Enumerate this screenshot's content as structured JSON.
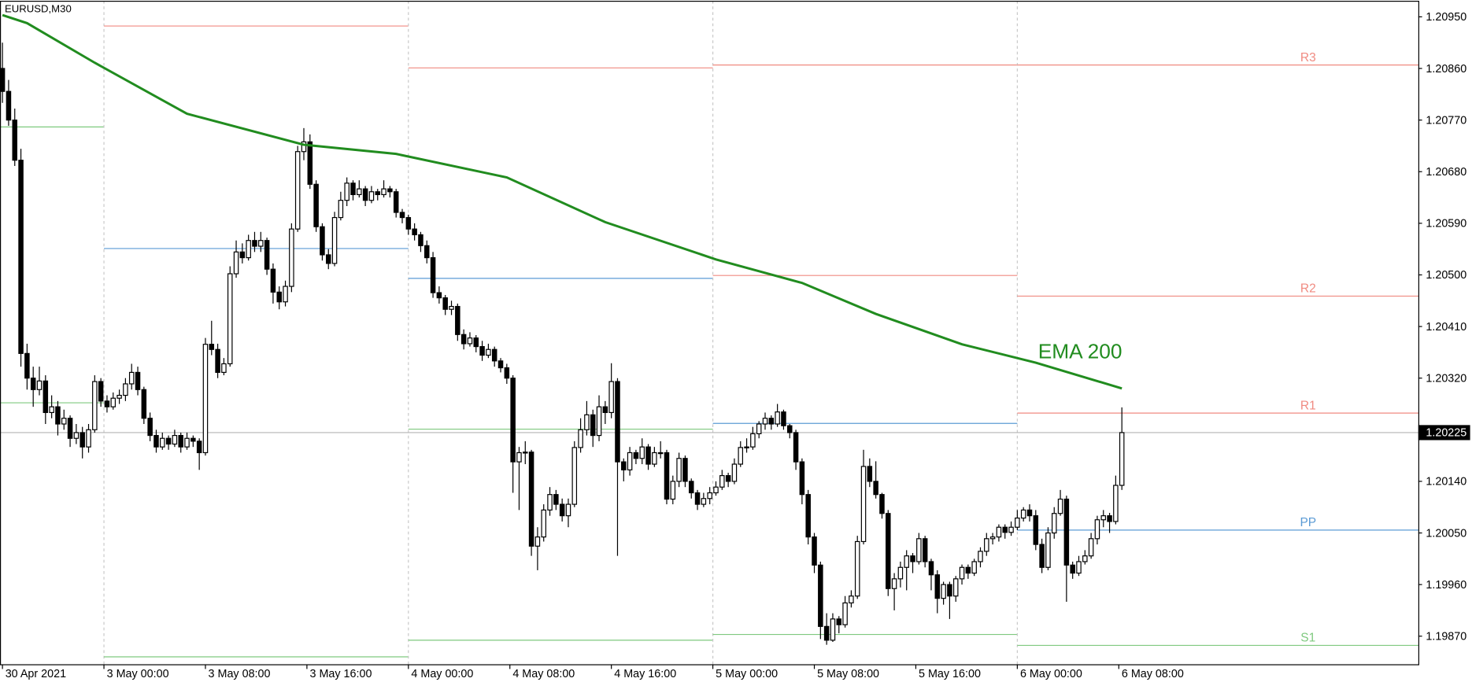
{
  "chart_data": {
    "type": "candlestick",
    "title": "EURUSD,M30",
    "up_color": "#ffffff",
    "down_color": "#000000",
    "ohlc": [
      [
        1.2086,
        1.20905,
        1.208,
        1.2082
      ],
      [
        1.2082,
        1.2084,
        1.2076,
        1.2077
      ],
      [
        1.2077,
        1.2079,
        1.2069,
        1.207
      ],
      [
        1.207,
        1.2072,
        1.2034,
        1.20363
      ],
      [
        1.20363,
        1.2038,
        1.203,
        1.2032
      ],
      [
        1.2032,
        1.2034,
        1.2027,
        1.203
      ],
      [
        1.203,
        1.2034,
        1.2029,
        1.20315
      ],
      [
        1.20315,
        1.20325,
        1.2024,
        1.2026
      ],
      [
        1.2026,
        1.2029,
        1.2025,
        1.2027
      ],
      [
        1.2027,
        1.2028,
        1.2022,
        1.2024
      ],
      [
        1.2024,
        1.20265,
        1.2023,
        1.2025
      ],
      [
        1.2025,
        1.20255,
        1.202,
        1.20215
      ],
      [
        1.20215,
        1.2024,
        1.20205,
        1.20225
      ],
      [
        1.20225,
        1.20235,
        1.2018,
        1.202
      ],
      [
        1.202,
        1.2024,
        1.2019,
        1.2023
      ],
      [
        1.2023,
        1.20325,
        1.20225,
        1.20314
      ],
      [
        1.20314,
        1.2032,
        1.2027,
        1.2028
      ],
      [
        1.2028,
        1.2029,
        1.2026,
        1.2027
      ],
      [
        1.2027,
        1.20295,
        1.20265,
        1.20285
      ],
      [
        1.20285,
        1.203,
        1.20275,
        1.2029
      ],
      [
        1.2029,
        1.2032,
        1.2028,
        1.2031
      ],
      [
        1.2031,
        1.20345,
        1.203,
        1.2033
      ],
      [
        1.2033,
        1.2034,
        1.2029,
        1.203
      ],
      [
        1.203,
        1.20305,
        1.2024,
        1.2025
      ],
      [
        1.2025,
        1.2026,
        1.2021,
        1.2022
      ],
      [
        1.2022,
        1.2023,
        1.2019,
        1.202
      ],
      [
        1.202,
        1.20225,
        1.20195,
        1.20215
      ],
      [
        1.20215,
        1.2022,
        1.20195,
        1.20205
      ],
      [
        1.20205,
        1.2023,
        1.202,
        1.2022
      ],
      [
        1.2022,
        1.20225,
        1.2019,
        1.202
      ],
      [
        1.202,
        1.20225,
        1.20195,
        1.20215
      ],
      [
        1.20215,
        1.2022,
        1.202,
        1.2021
      ],
      [
        1.2021,
        1.20215,
        1.2016,
        1.2019
      ],
      [
        1.2019,
        1.2039,
        1.20185,
        1.20379
      ],
      [
        1.20379,
        1.2042,
        1.2036,
        1.2037
      ],
      [
        1.2037,
        1.2038,
        1.2032,
        1.2033
      ],
      [
        1.2033,
        1.20355,
        1.20325,
        1.20345
      ],
      [
        1.20345,
        1.20515,
        1.2034,
        1.20502
      ],
      [
        1.20502,
        1.2056,
        1.20495,
        1.2054
      ],
      [
        1.2054,
        1.20555,
        1.2052,
        1.2053
      ],
      [
        1.2053,
        1.2057,
        1.20525,
        1.2056
      ],
      [
        1.2056,
        1.20575,
        1.2054,
        1.2055
      ],
      [
        1.2055,
        1.20575,
        1.2054,
        1.2056
      ],
      [
        1.2056,
        1.20565,
        1.205,
        1.2051
      ],
      [
        1.2051,
        1.2052,
        1.2045,
        1.2047
      ],
      [
        1.2047,
        1.2048,
        1.2044,
        1.20453
      ],
      [
        1.20453,
        1.2049,
        1.20445,
        1.2048
      ],
      [
        1.2048,
        1.2059,
        1.2047,
        1.2058
      ],
      [
        1.2058,
        1.20725,
        1.20575,
        1.20715
      ],
      [
        1.20715,
        1.20756,
        1.207,
        1.20732
      ],
      [
        1.20732,
        1.20745,
        1.2065,
        1.20658
      ],
      [
        1.20658,
        1.20665,
        1.20575,
        1.20584
      ],
      [
        1.20584,
        1.2059,
        1.20525,
        1.20535
      ],
      [
        1.20535,
        1.20545,
        1.2051,
        1.2052
      ],
      [
        1.2052,
        1.2061,
        1.20515,
        1.206
      ],
      [
        1.206,
        1.20645,
        1.20595,
        1.2063
      ],
      [
        1.2063,
        1.2067,
        1.2062,
        1.2066
      ],
      [
        1.2066,
        1.20665,
        1.2063,
        1.2064
      ],
      [
        1.2064,
        1.20665,
        1.20635,
        1.2065
      ],
      [
        1.2065,
        1.20655,
        1.2062,
        1.2063
      ],
      [
        1.2063,
        1.20655,
        1.20625,
        1.20645
      ],
      [
        1.20645,
        1.2065,
        1.2063,
        1.2064
      ],
      [
        1.2064,
        1.20665,
        1.20635,
        1.2065
      ],
      [
        1.2065,
        1.20655,
        1.20635,
        1.20645
      ],
      [
        1.20645,
        1.2065,
        1.206,
        1.20609
      ],
      [
        1.20609,
        1.20615,
        1.2059,
        1.206
      ],
      [
        1.206,
        1.20605,
        1.2057,
        1.2058
      ],
      [
        1.2058,
        1.2059,
        1.2056,
        1.2057
      ],
      [
        1.2057,
        1.20575,
        1.2054,
        1.20551
      ],
      [
        1.20551,
        1.2056,
        1.2052,
        1.2053
      ],
      [
        1.2053,
        1.2054,
        1.2046,
        1.20469
      ],
      [
        1.20469,
        1.2048,
        1.2045,
        1.2046
      ],
      [
        1.2046,
        1.20465,
        1.2043,
        1.2044
      ],
      [
        1.2044,
        1.20455,
        1.2043,
        1.20445
      ],
      [
        1.20445,
        1.2045,
        1.20385,
        1.20396
      ],
      [
        1.20396,
        1.20405,
        1.2037,
        1.2038
      ],
      [
        1.2038,
        1.204,
        1.20375,
        1.2039
      ],
      [
        1.2039,
        1.20395,
        1.20365,
        1.20375
      ],
      [
        1.20375,
        1.20385,
        1.2035,
        1.2036
      ],
      [
        1.2036,
        1.2038,
        1.20355,
        1.2037
      ],
      [
        1.2037,
        1.20375,
        1.2034,
        1.2035
      ],
      [
        1.2035,
        1.20355,
        1.2033,
        1.20338
      ],
      [
        1.20338,
        1.20345,
        1.2031,
        1.2032
      ],
      [
        1.2032,
        1.20325,
        1.2012,
        1.20174
      ],
      [
        1.20174,
        1.202,
        1.2009,
        1.2019
      ],
      [
        1.2019,
        1.2021,
        1.2017,
        1.20191
      ],
      [
        1.20191,
        1.20195,
        1.2001,
        1.20027
      ],
      [
        1.20027,
        1.2006,
        1.19985,
        1.20043
      ],
      [
        1.20043,
        1.201,
        1.20035,
        1.2009
      ],
      [
        1.2009,
        1.2013,
        1.2008,
        1.20117
      ],
      [
        1.20117,
        1.20125,
        1.2009,
        1.201
      ],
      [
        1.201,
        1.2011,
        1.2007,
        1.2008
      ],
      [
        1.2008,
        1.2011,
        1.2006,
        1.201
      ],
      [
        1.201,
        1.2021,
        1.20095,
        1.20199
      ],
      [
        1.20199,
        1.2025,
        1.2019,
        1.2023
      ],
      [
        1.2023,
        1.2028,
        1.2022,
        1.20256
      ],
      [
        1.20256,
        1.20265,
        1.202,
        1.2022
      ],
      [
        1.2022,
        1.2029,
        1.2021,
        1.2027
      ],
      [
        1.2027,
        1.2028,
        1.2024,
        1.2026
      ],
      [
        1.2026,
        1.20346,
        1.2025,
        1.20314
      ],
      [
        1.20314,
        1.2032,
        1.2001,
        1.20174
      ],
      [
        1.20174,
        1.2018,
        1.2014,
        1.2016
      ],
      [
        1.2016,
        1.202,
        1.2015,
        1.2019
      ],
      [
        1.2019,
        1.20195,
        1.2017,
        1.2018
      ],
      [
        1.2018,
        1.20215,
        1.2017,
        1.202
      ],
      [
        1.202,
        1.20205,
        1.2016,
        1.2017
      ],
      [
        1.2017,
        1.202,
        1.20165,
        1.2019
      ],
      [
        1.2019,
        1.2021,
        1.2018,
        1.2019
      ],
      [
        1.2019,
        1.20195,
        1.201,
        1.20109
      ],
      [
        1.20109,
        1.2015,
        1.201,
        1.2014
      ],
      [
        1.2014,
        1.2019,
        1.2013,
        1.2018
      ],
      [
        1.2018,
        1.20185,
        1.2013,
        1.2014
      ],
      [
        1.2014,
        1.20145,
        1.2011,
        1.2012
      ],
      [
        1.2012,
        1.20125,
        1.2009,
        1.201
      ],
      [
        1.201,
        1.2012,
        1.20095,
        1.2011
      ],
      [
        1.2011,
        1.2013,
        1.201,
        1.2012
      ],
      [
        1.2012,
        1.2014,
        1.20115,
        1.2013
      ],
      [
        1.2013,
        1.2016,
        1.20125,
        1.2015
      ],
      [
        1.2015,
        1.20155,
        1.2013,
        1.2014
      ],
      [
        1.2014,
        1.2018,
        1.20135,
        1.2017
      ],
      [
        1.2017,
        1.2021,
        1.20165,
        1.20199
      ],
      [
        1.20199,
        1.20215,
        1.2019,
        1.202
      ],
      [
        1.202,
        1.20235,
        1.20195,
        1.20223
      ],
      [
        1.20223,
        1.20245,
        1.20215,
        1.2024
      ],
      [
        1.2024,
        1.2026,
        1.2023,
        1.2025
      ],
      [
        1.2025,
        1.20255,
        1.2023,
        1.2024
      ],
      [
        1.2024,
        1.20275,
        1.20235,
        1.20261
      ],
      [
        1.20261,
        1.20265,
        1.2023,
        1.20237
      ],
      [
        1.20237,
        1.2024,
        1.20215,
        1.20225
      ],
      [
        1.20225,
        1.2023,
        1.2016,
        1.20174
      ],
      [
        1.20174,
        1.2018,
        1.201,
        1.20117
      ],
      [
        1.20117,
        1.20125,
        1.2003,
        1.20043
      ],
      [
        1.20043,
        1.2005,
        1.1998,
        1.19994
      ],
      [
        1.19994,
        1.2,
        1.19865,
        1.19887
      ],
      [
        1.19887,
        1.1991,
        1.19855,
        1.19863
      ],
      [
        1.19863,
        1.1991,
        1.1986,
        1.199
      ],
      [
        1.199,
        1.19905,
        1.19875,
        1.1989
      ],
      [
        1.1989,
        1.1994,
        1.19885,
        1.19928
      ],
      [
        1.19928,
        1.1995,
        1.1992,
        1.1994
      ],
      [
        1.1994,
        1.20045,
        1.19935,
        1.20035
      ],
      [
        1.20035,
        1.20195,
        1.2003,
        1.20166
      ],
      [
        1.20166,
        1.2018,
        1.2013,
        1.2014
      ],
      [
        1.2014,
        1.20175,
        1.2011,
        1.20117
      ],
      [
        1.20117,
        1.2012,
        1.20075,
        1.20084
      ],
      [
        1.20084,
        1.2009,
        1.1994,
        1.19953
      ],
      [
        1.19953,
        1.1998,
        1.19915,
        1.1997
      ],
      [
        1.1997,
        1.2,
        1.19955,
        1.1999
      ],
      [
        1.1999,
        1.2002,
        1.1995,
        1.2001
      ],
      [
        1.2001,
        1.20015,
        1.1998,
        1.2
      ],
      [
        1.2,
        1.2005,
        1.19995,
        1.2004
      ],
      [
        1.2004,
        1.20045,
        1.1999,
        1.2
      ],
      [
        1.2,
        1.20005,
        1.1995,
        1.19977
      ],
      [
        1.19977,
        1.19985,
        1.1991,
        1.19936
      ],
      [
        1.19936,
        1.19965,
        1.19925,
        1.1996
      ],
      [
        1.1996,
        1.19965,
        1.199,
        1.1994
      ],
      [
        1.1994,
        1.19975,
        1.1993,
        1.1997
      ],
      [
        1.1997,
        1.19995,
        1.1996,
        1.1999
      ],
      [
        1.1999,
        1.19995,
        1.1997,
        1.1998
      ],
      [
        1.1998,
        1.20005,
        1.19975,
        1.2
      ],
      [
        1.2,
        1.20025,
        1.1999,
        1.20018
      ],
      [
        1.20018,
        1.2005,
        1.2001,
        1.2004
      ],
      [
        1.2004,
        1.2005,
        1.2003,
        1.20043
      ],
      [
        1.20043,
        1.20065,
        1.20035,
        1.2006
      ],
      [
        1.2006,
        1.20065,
        1.2004,
        1.20051
      ],
      [
        1.20051,
        1.2007,
        1.20045,
        1.2006
      ],
      [
        1.2006,
        1.2009,
        1.20055,
        1.20076
      ],
      [
        1.20076,
        1.20095,
        1.2007,
        1.2009
      ],
      [
        1.2009,
        1.201,
        1.2007,
        1.2008
      ],
      [
        1.2008,
        1.2009,
        1.2002,
        1.2003
      ],
      [
        1.2003,
        1.2004,
        1.1998,
        1.1999
      ],
      [
        1.1999,
        1.2006,
        1.19985,
        1.2005
      ],
      [
        1.2005,
        1.20095,
        1.2004,
        1.20084
      ],
      [
        1.20084,
        1.20125,
        1.2008,
        1.20109
      ],
      [
        1.20109,
        1.20115,
        1.1993,
        1.19994
      ],
      [
        1.19994,
        1.2,
        1.1997,
        1.1998
      ],
      [
        1.1998,
        1.2001,
        1.19975,
        1.2
      ],
      [
        1.2,
        1.2002,
        1.19995,
        1.2001
      ],
      [
        1.2001,
        1.2005,
        1.20005,
        1.2004
      ],
      [
        1.2004,
        1.2008,
        1.2003,
        1.20073
      ],
      [
        1.20073,
        1.2009,
        1.2006,
        1.2008
      ],
      [
        1.2008,
        1.20085,
        1.2005,
        1.2007
      ],
      [
        1.2007,
        1.2015,
        1.20065,
        1.20133
      ],
      [
        1.20133,
        1.20269,
        1.20125,
        1.20225
      ]
    ],
    "xlim": [
      -0.4,
      230.2
    ],
    "xticks": [
      {
        "value": 0,
        "label": "30 Apr 2021"
      },
      {
        "value": 16.5,
        "label": "3 May 00:00"
      },
      {
        "value": 33,
        "label": "3 May 08:00"
      },
      {
        "value": 49.5,
        "label": "3 May 16:00"
      },
      {
        "value": 66,
        "label": "4 May 00:00"
      },
      {
        "value": 82.5,
        "label": "4 May 08:00"
      },
      {
        "value": 99,
        "label": "4 May 16:00"
      },
      {
        "value": 115.5,
        "label": "5 May 00:00"
      },
      {
        "value": 132,
        "label": "5 May 08:00"
      },
      {
        "value": 148.5,
        "label": "5 May 16:00"
      },
      {
        "value": 165,
        "label": "6 May 00:00"
      },
      {
        "value": 181.5,
        "label": "6 May 08:00"
      }
    ],
    "ylim": [
      1.19821,
      1.20978
    ],
    "yticks": [
      {
        "value": 1.2095,
        "label": "1.20950"
      },
      {
        "value": 1.2086,
        "label": "1.20860"
      },
      {
        "value": 1.2077,
        "label": "1.20770"
      },
      {
        "value": 1.2068,
        "label": "1.20680"
      },
      {
        "value": 1.2059,
        "label": "1.20590"
      },
      {
        "value": 1.205,
        "label": "1.20500"
      },
      {
        "value": 1.2041,
        "label": "1.20410"
      },
      {
        "value": 1.2032,
        "label": "1.20320"
      },
      {
        "value": 1.2014,
        "label": "1.20140"
      },
      {
        "value": 1.2005,
        "label": "1.20050"
      },
      {
        "value": 1.1996,
        "label": "1.19960"
      },
      {
        "value": 1.1987,
        "label": "1.19870"
      }
    ],
    "current_price": 1.20225,
    "ema": {
      "name": "EMA 200",
      "color": "#218c1f",
      "x": [
        0,
        4,
        15,
        30,
        49,
        64,
        82,
        98,
        116,
        130,
        142,
        156,
        168,
        182
      ],
      "values": [
        1.20953,
        1.20939,
        1.2087,
        1.20781,
        1.20727,
        1.20711,
        1.2067,
        1.20592,
        1.20527,
        1.20486,
        1.20432,
        1.20379,
        1.20347,
        1.20302
      ]
    },
    "pivots": [
      {
        "from": -0.4,
        "to": 16.5,
        "levels": [
          {
            "value": 1.20758,
            "color": "#7fc97f"
          },
          {
            "value": 1.20277,
            "color": "#7fc97f"
          }
        ]
      },
      {
        "from": 16.5,
        "to": 66,
        "levels": [
          {
            "value": 1.20934,
            "color": "#f08a80"
          },
          {
            "value": 1.20546,
            "color": "#5b9bd5"
          },
          {
            "value": 1.19834,
            "color": "#7fc97f"
          }
        ]
      },
      {
        "from": 66,
        "to": 115.5,
        "levels": [
          {
            "value": 1.20861,
            "color": "#f08a80"
          },
          {
            "value": 1.20494,
            "color": "#5b9bd5"
          },
          {
            "value": 1.20231,
            "color": "#7fc97f"
          },
          {
            "value": 1.19863,
            "color": "#7fc97f"
          }
        ]
      },
      {
        "from": 115.5,
        "to": 165,
        "levels": [
          {
            "value": 1.20866,
            "color": "#f08a80"
          },
          {
            "value": 1.20499,
            "color": "#f08a80"
          },
          {
            "value": 1.20241,
            "color": "#5b9bd5"
          },
          {
            "value": 1.19873,
            "color": "#7fc97f"
          }
        ]
      },
      {
        "from": 165,
        "to": 230.2,
        "levels": [
          {
            "value": 1.20866,
            "color": "#f08a80",
            "label": "R3"
          },
          {
            "value": 1.20463,
            "color": "#f08a80",
            "label": "R2"
          },
          {
            "value": 1.20259,
            "color": "#f08a80",
            "label": "R1"
          },
          {
            "value": 1.20055,
            "color": "#5b9bd5",
            "label": "PP"
          },
          {
            "value": 1.19854,
            "color": "#7fc97f",
            "label": "S1"
          }
        ]
      }
    ]
  }
}
